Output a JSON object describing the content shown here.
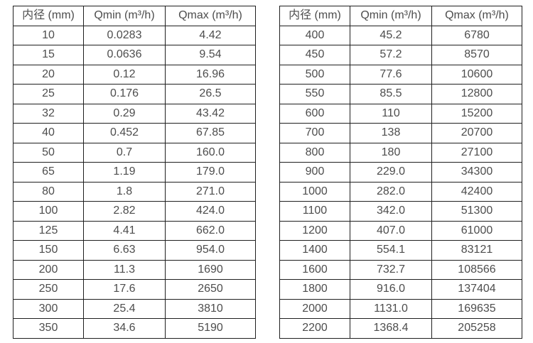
{
  "page": {
    "background_color": "#ffffff",
    "text_color": "#4d4d4d",
    "border_color": "#1f1f1f",
    "description": "Two side-by-side specification tables listing flow meter inner diameters with minimum and maximum flow rates"
  },
  "tables": [
    {
      "name": "flow-table-small-diameters",
      "headers": [
        "内径 (mm)",
        "Qmin (m³/h)",
        "Qmax (m³/h)"
      ],
      "rows": [
        [
          "10",
          "0.0283",
          "4.42"
        ],
        [
          "15",
          "0.0636",
          "9.54"
        ],
        [
          "20",
          "0.12",
          "16.96"
        ],
        [
          "25",
          "0.176",
          "26.5"
        ],
        [
          "32",
          "0.29",
          "43.42"
        ],
        [
          "40",
          "0.452",
          "67.85"
        ],
        [
          "50",
          "0.7",
          "160.0"
        ],
        [
          "65",
          "1.19",
          "179.0"
        ],
        [
          "80",
          "1.8",
          "271.0"
        ],
        [
          "100",
          "2.82",
          "424.0"
        ],
        [
          "125",
          "4.41",
          "662.0"
        ],
        [
          "150",
          "6.63",
          "954.0"
        ],
        [
          "200",
          "11.3",
          "1690"
        ],
        [
          "250",
          "17.6",
          "2650"
        ],
        [
          "300",
          "25.4",
          "3810"
        ],
        [
          "350",
          "34.6",
          "5190"
        ]
      ]
    },
    {
      "name": "flow-table-large-diameters",
      "headers": [
        "内径 (mm)",
        "Qmin (m³/h)",
        "Qmax (m³/h)"
      ],
      "rows": [
        [
          "400",
          "45.2",
          "6780"
        ],
        [
          "450",
          "57.2",
          "8570"
        ],
        [
          "500",
          "77.6",
          "10600"
        ],
        [
          "550",
          "85.5",
          "12800"
        ],
        [
          "600",
          "110",
          "15200"
        ],
        [
          "700",
          "138",
          "20700"
        ],
        [
          "800",
          "180",
          "27100"
        ],
        [
          "900",
          "229.0",
          "34300"
        ],
        [
          "1000",
          "282.0",
          "42400"
        ],
        [
          "1100",
          "342.0",
          "51300"
        ],
        [
          "1200",
          "407.0",
          "61000"
        ],
        [
          "1400",
          "554.1",
          "83121"
        ],
        [
          "1600",
          "732.7",
          "108566"
        ],
        [
          "1800",
          "916.0",
          "137404"
        ],
        [
          "2000",
          "1131.0",
          "169635"
        ],
        [
          "2200",
          "1368.4",
          "205258"
        ]
      ]
    }
  ]
}
